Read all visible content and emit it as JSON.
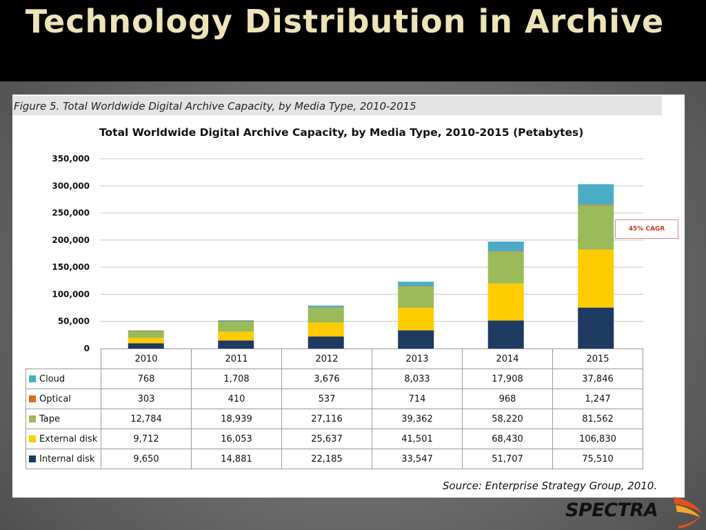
{
  "slide": {
    "title": "Technology Distribution in Archive"
  },
  "figure": {
    "caption": "Figure 5. Total Worldwide Digital Archive Capacity, by Media Type, 2010-2015",
    "source": "Source: Enterprise Strategy Group, 2010."
  },
  "annotation": {
    "cagr": "45% CAGR"
  },
  "logo": {
    "text": "SPECTRA"
  },
  "chart_data": {
    "type": "bar",
    "stacked": true,
    "title": "Total Worldwide Digital Archive Capacity, by Media Type, 2010-2015 (Petabytes)",
    "xlabel": "",
    "ylabel": "",
    "categories": [
      "2010",
      "2011",
      "2012",
      "2013",
      "2014",
      "2015"
    ],
    "ylim": [
      0,
      350000
    ],
    "yticks": [
      0,
      50000,
      100000,
      150000,
      200000,
      250000,
      300000,
      350000
    ],
    "ytick_labels": [
      "0",
      "50,000",
      "100,000",
      "150,000",
      "200,000",
      "250,000",
      "300,000",
      "350,000"
    ],
    "grid": true,
    "legend": "data-table-rows",
    "series": [
      {
        "name": "Internal disk",
        "color": "#1f3a60",
        "values": [
          9650,
          14881,
          22185,
          33547,
          51707,
          75510
        ],
        "labels": [
          "9,650",
          "14,881",
          "22,185",
          "33,547",
          "51,707",
          "75,510"
        ]
      },
      {
        "name": "External disk",
        "color": "#ffcc00",
        "values": [
          9712,
          16053,
          25637,
          41501,
          68430,
          106830
        ],
        "labels": [
          "9,712",
          "16,053",
          "25,637",
          "41,501",
          "68,430",
          "106,830"
        ]
      },
      {
        "name": "Tape",
        "color": "#9bbb59",
        "values": [
          12784,
          18939,
          27116,
          39362,
          58220,
          81562
        ],
        "labels": [
          "12,784",
          "18,939",
          "27,116",
          "39,362",
          "58,220",
          "81,562"
        ]
      },
      {
        "name": "Optical",
        "color": "#e46c0a",
        "values": [
          303,
          410,
          537,
          714,
          968,
          1247
        ],
        "labels": [
          "303",
          "410",
          "537",
          "714",
          "968",
          "1,247"
        ]
      },
      {
        "name": "Cloud",
        "color": "#4bacc6",
        "values": [
          768,
          1708,
          3676,
          8033,
          17908,
          37846
        ],
        "labels": [
          "768",
          "1,708",
          "3,676",
          "8,033",
          "17,908",
          "37,846"
        ]
      }
    ],
    "table_row_order": [
      "Cloud",
      "Optical",
      "Tape",
      "External disk",
      "Internal disk"
    ]
  }
}
